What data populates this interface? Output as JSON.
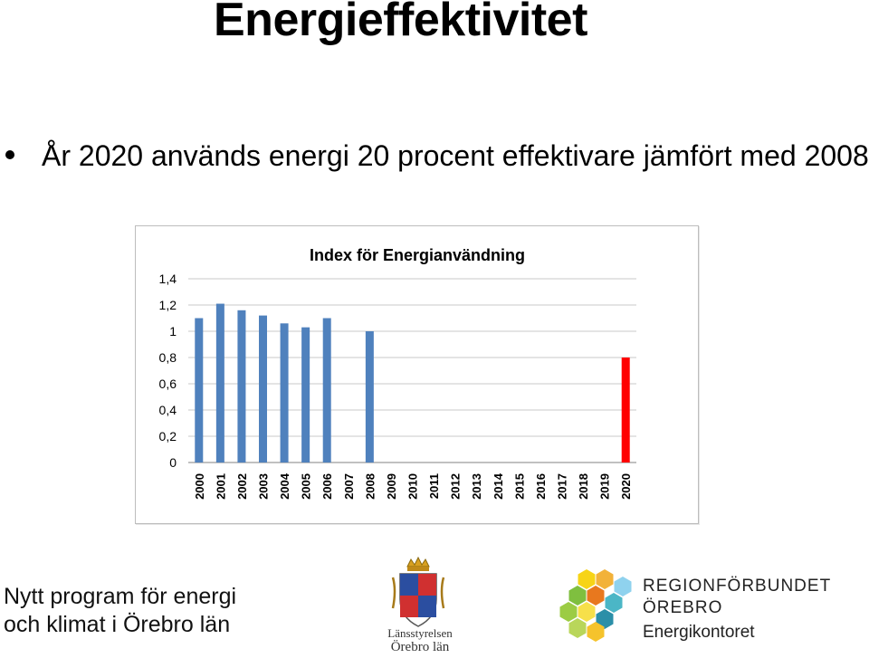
{
  "slide": {
    "title": "Energieffektivitet",
    "bullet": "År 2020 används energi 20 procent effektivare jämfört med 2008."
  },
  "chart_data": {
    "type": "bar",
    "title": "Index för Energianvändning",
    "categories": [
      "2000",
      "2001",
      "2002",
      "2003",
      "2004",
      "2005",
      "2006",
      "2007",
      "2008",
      "2009",
      "2010",
      "2011",
      "2012",
      "2013",
      "2014",
      "2015",
      "2016",
      "2017",
      "2018",
      "2019",
      "2020"
    ],
    "values": [
      1.1,
      1.21,
      1.16,
      1.12,
      1.06,
      1.03,
      1.1,
      null,
      1.0,
      null,
      null,
      null,
      null,
      null,
      null,
      null,
      null,
      null,
      null,
      null,
      0.8
    ],
    "ylim": [
      0,
      1.4
    ],
    "yticks": [
      "0",
      "0,2",
      "0,4",
      "0,6",
      "0,8",
      "1",
      "1,2",
      "1,4"
    ],
    "xlabel": "",
    "ylabel": "",
    "grid": true,
    "colors": {
      "default": "#4f81bd",
      "target": "#ff0000",
      "target_category": "2020"
    }
  },
  "footer": {
    "program_line1": "Nytt program för energi",
    "program_line2": "och klimat i Örebro län",
    "authority_line1": "Länsstyrelsen",
    "authority_line2": "Örebro län",
    "region_line1": "REGIONFÖRBUNDET",
    "region_line2": "ÖREBRO",
    "region_line3": "Energikontoret"
  }
}
